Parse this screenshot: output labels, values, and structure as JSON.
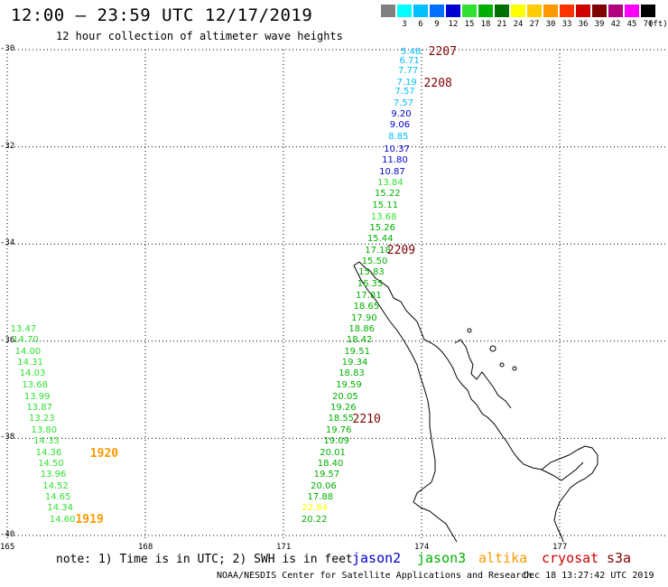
{
  "header": {
    "title": "12:00 – 23:59 UTC 12/17/2019",
    "subtitle": "12 hour collection of altimeter wave heights"
  },
  "color_scale": {
    "unit_label": "(ft)",
    "swatches": [
      {
        "label": "",
        "color": "#808080"
      },
      {
        "label": "3",
        "color": "#00ffff"
      },
      {
        "label": "6",
        "color": "#00bfff"
      },
      {
        "label": "9",
        "color": "#0070ff"
      },
      {
        "label": "12",
        "color": "#0000d0"
      },
      {
        "label": "15",
        "color": "#30e030"
      },
      {
        "label": "18",
        "color": "#00b000"
      },
      {
        "label": "21",
        "color": "#007000"
      },
      {
        "label": "24",
        "color": "#ffff00"
      },
      {
        "label": "27",
        "color": "#ffcc00"
      },
      {
        "label": "30",
        "color": "#ff9900"
      },
      {
        "label": "33",
        "color": "#ff3300"
      },
      {
        "label": "36",
        "color": "#d00000"
      },
      {
        "label": "39",
        "color": "#800000"
      },
      {
        "label": "42",
        "color": "#b00080"
      },
      {
        "label": "45",
        "color": "#ff00ff"
      },
      {
        "label": "70",
        "color": "#000000"
      }
    ]
  },
  "map": {
    "lat_ticks": [
      "-30",
      "-32",
      "-34",
      "-36",
      "-38",
      "-40"
    ],
    "lon_ticks": [
      "165",
      "168",
      "171",
      "174",
      "177"
    ],
    "lat_range": [
      -40,
      -30
    ],
    "lon_range": [
      165,
      179.5
    ],
    "coastline": "New Zealand North Island"
  },
  "tracks": {
    "jason3_east": {
      "color_note": "values colored by wave height scale",
      "points": [
        {
          "v": "5.48",
          "lat": -30.05,
          "lon": 173.55,
          "color": "#00bfff"
        },
        {
          "v": "6.71",
          "lat": -30.25,
          "lon": 173.52,
          "color": "#00bfff"
        },
        {
          "v": "7.77",
          "lat": -30.45,
          "lon": 173.49,
          "color": "#00bfff"
        },
        {
          "v": "7.19",
          "lat": -30.68,
          "lon": 173.46,
          "color": "#00bfff"
        },
        {
          "v": "7.57",
          "lat": -30.88,
          "lon": 173.42,
          "color": "#00bfff"
        },
        {
          "v": "7.57",
          "lat": -31.11,
          "lon": 173.39,
          "color": "#00bfff"
        },
        {
          "v": "9.20",
          "lat": -31.34,
          "lon": 173.34,
          "color": "#0000d0"
        },
        {
          "v": "9.06",
          "lat": -31.57,
          "lon": 173.31,
          "color": "#0000d0"
        },
        {
          "v": "8.85",
          "lat": -31.8,
          "lon": 173.28,
          "color": "#00bfff"
        },
        {
          "v": "10.37",
          "lat": -32.06,
          "lon": 173.18,
          "color": "#0000d0"
        },
        {
          "v": "11.80",
          "lat": -32.29,
          "lon": 173.14,
          "color": "#0000d0"
        },
        {
          "v": "10.87",
          "lat": -32.52,
          "lon": 173.08,
          "color": "#0000d0"
        },
        {
          "v": "13.84",
          "lat": -32.75,
          "lon": 173.04,
          "color": "#30e030"
        },
        {
          "v": "15.22",
          "lat": -32.98,
          "lon": 172.98,
          "color": "#00b000"
        },
        {
          "v": "15.11",
          "lat": -33.22,
          "lon": 172.93,
          "color": "#00b000"
        },
        {
          "v": "13.68",
          "lat": -33.45,
          "lon": 172.9,
          "color": "#30e030"
        },
        {
          "v": "15.26",
          "lat": -33.68,
          "lon": 172.87,
          "color": "#00b000"
        },
        {
          "v": "15.44",
          "lat": -33.91,
          "lon": 172.82,
          "color": "#00b000"
        },
        {
          "v": "17.18",
          "lat": -34.14,
          "lon": 172.77,
          "color": "#00b000"
        },
        {
          "v": "15.50",
          "lat": -34.37,
          "lon": 172.7,
          "color": "#00b000"
        },
        {
          "v": "15.83",
          "lat": -34.6,
          "lon": 172.63,
          "color": "#00b000"
        },
        {
          "v": "16.35",
          "lat": -34.84,
          "lon": 172.6,
          "color": "#00b000"
        },
        {
          "v": "17.81",
          "lat": -35.07,
          "lon": 172.57,
          "color": "#00b000"
        },
        {
          "v": "18.65",
          "lat": -35.3,
          "lon": 172.52,
          "color": "#00b000"
        },
        {
          "v": "17.90",
          "lat": -35.53,
          "lon": 172.47,
          "color": "#00b000"
        },
        {
          "v": "18.86",
          "lat": -35.76,
          "lon": 172.42,
          "color": "#00b000"
        },
        {
          "v": "18.42",
          "lat": -35.99,
          "lon": 172.37,
          "color": "#00b000"
        },
        {
          "v": "19.51",
          "lat": -36.22,
          "lon": 172.32,
          "color": "#00b000"
        },
        {
          "v": "19.34",
          "lat": -36.45,
          "lon": 172.27,
          "color": "#00b000"
        },
        {
          "v": "18.83",
          "lat": -36.68,
          "lon": 172.2,
          "color": "#00b000"
        },
        {
          "v": "19.59",
          "lat": -36.92,
          "lon": 172.14,
          "color": "#00b000"
        },
        {
          "v": "20.05",
          "lat": -37.15,
          "lon": 172.06,
          "color": "#00b000"
        },
        {
          "v": "19.26",
          "lat": -37.38,
          "lon": 172.02,
          "color": "#00b000"
        },
        {
          "v": "18.55",
          "lat": -37.61,
          "lon": 171.97,
          "color": "#00b000"
        },
        {
          "v": "19.76",
          "lat": -37.84,
          "lon": 171.92,
          "color": "#00b000"
        },
        {
          "v": "19.09",
          "lat": -38.07,
          "lon": 171.87,
          "color": "#00b000"
        },
        {
          "v": "20.01",
          "lat": -38.3,
          "lon": 171.79,
          "color": "#00b000"
        },
        {
          "v": "18.40",
          "lat": -38.53,
          "lon": 171.74,
          "color": "#00b000"
        },
        {
          "v": "19.57",
          "lat": -38.76,
          "lon": 171.66,
          "color": "#00b000"
        },
        {
          "v": "20.06",
          "lat": -38.99,
          "lon": 171.59,
          "color": "#00b000"
        },
        {
          "v": "17.88",
          "lat": -39.22,
          "lon": 171.52,
          "color": "#00b000"
        },
        {
          "v": "22.84",
          "lat": -39.45,
          "lon": 171.4,
          "color": "#ffff00"
        },
        {
          "v": "20.22",
          "lat": -39.68,
          "lon": 171.39,
          "color": "#00b000"
        }
      ]
    },
    "altika_west": {
      "points": [
        {
          "v": "13.47",
          "lat": -35.77,
          "lon": 165.07,
          "color": "#30e030"
        },
        {
          "v": "14.70",
          "lat": -35.99,
          "lon": 165.12,
          "color": "#30e030"
        },
        {
          "v": "14.00",
          "lat": -36.22,
          "lon": 165.17,
          "color": "#30e030"
        },
        {
          "v": "14.31",
          "lat": -36.45,
          "lon": 165.22,
          "color": "#30e030"
        },
        {
          "v": "14.03",
          "lat": -36.68,
          "lon": 165.27,
          "color": "#30e030"
        },
        {
          "v": "13.68",
          "lat": -36.92,
          "lon": 165.32,
          "color": "#30e030"
        },
        {
          "v": "13.99",
          "lat": -37.15,
          "lon": 165.37,
          "color": "#30e030"
        },
        {
          "v": "13.87",
          "lat": -37.38,
          "lon": 165.42,
          "color": "#30e030"
        },
        {
          "v": "13.23",
          "lat": -37.61,
          "lon": 165.47,
          "color": "#30e030"
        },
        {
          "v": "13.80",
          "lat": -37.84,
          "lon": 165.52,
          "color": "#30e030"
        },
        {
          "v": "14.33",
          "lat": -38.07,
          "lon": 165.57,
          "color": "#30e030"
        },
        {
          "v": "14.36",
          "lat": -38.3,
          "lon": 165.62,
          "color": "#30e030"
        },
        {
          "v": "14.50",
          "lat": -38.53,
          "lon": 165.67,
          "color": "#30e030"
        },
        {
          "v": "13.96",
          "lat": -38.76,
          "lon": 165.72,
          "color": "#30e030"
        },
        {
          "v": "14.52",
          "lat": -38.99,
          "lon": 165.77,
          "color": "#30e030"
        },
        {
          "v": "14.65",
          "lat": -39.22,
          "lon": 165.82,
          "color": "#30e030"
        },
        {
          "v": "14.34",
          "lat": -39.45,
          "lon": 165.87,
          "color": "#30e030"
        },
        {
          "v": "14.60",
          "lat": -39.68,
          "lon": 165.92,
          "color": "#30e030"
        }
      ]
    }
  },
  "time_labels": [
    {
      "text": "2207",
      "lat": -30.05,
      "lon": 174.15,
      "color": "#800000"
    },
    {
      "text": "2208",
      "lat": -30.7,
      "lon": 174.05,
      "color": "#800000"
    },
    {
      "text": "2209",
      "lat": -34.15,
      "lon": 173.25,
      "color": "#800000"
    },
    {
      "text": "2210",
      "lat": -37.62,
      "lon": 172.5,
      "color": "#800000"
    },
    {
      "text": "1920",
      "lat": -38.32,
      "lon": 166.8,
      "color": "#ff9900"
    },
    {
      "text": "1919",
      "lat": -39.68,
      "lon": 166.48,
      "color": "#ff9900"
    }
  ],
  "legend": {
    "note": "note: 1) Time is in UTC; 2) SWH is in feet",
    "satellites": [
      {
        "name": "jason2",
        "color": "#0000d0"
      },
      {
        "name": "jason3",
        "color": "#00b000"
      },
      {
        "name": "altika",
        "color": "#ff9900"
      },
      {
        "name": "cryosat",
        "color": "#d00000"
      },
      {
        "name": "s3a",
        "color": "#800000"
      }
    ]
  },
  "footer": {
    "credit": "NOAA/NESDIS Center for Satellite Applications and Research",
    "timestamp": "Dec 18 13:27:42 UTC 2019"
  }
}
